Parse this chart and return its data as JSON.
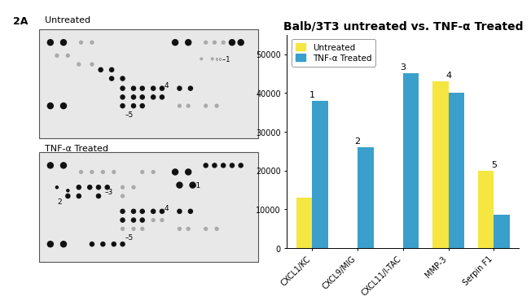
{
  "title": "Balb/3T3 untreated vs. TNF-α Treated",
  "categories": [
    "CXCL1/KC",
    "CXCL9/MIG",
    "CXCL11/I-TAC",
    "MMP-3",
    "Serpin F1"
  ],
  "untreated": [
    13000,
    0,
    0,
    43000,
    20000
  ],
  "tnf_treated": [
    38000,
    26000,
    45000,
    40000,
    8500
  ],
  "bar_labels": [
    "1",
    "2",
    "3",
    "4",
    "5"
  ],
  "color_untreated": "#F5E642",
  "color_tnf": "#3B9FCC",
  "legend_untreated": "Untreated",
  "legend_tnf": "TNF-α Treated",
  "ylim": [
    0,
    55000
  ],
  "yticks": [
    0,
    10000,
    20000,
    30000,
    40000,
    50000
  ],
  "bar_width": 0.35,
  "title_fontsize": 10,
  "tick_fontsize": 7,
  "legend_fontsize": 7.5,
  "label_fontsize": 8,
  "bg_color": "#FFFFFF",
  "panel_bg": "#E8E8E8",
  "panel_border": "#555555",
  "dot_dark": "#111111",
  "dot_medium": "#555555",
  "dot_light": "#AAAAAA"
}
